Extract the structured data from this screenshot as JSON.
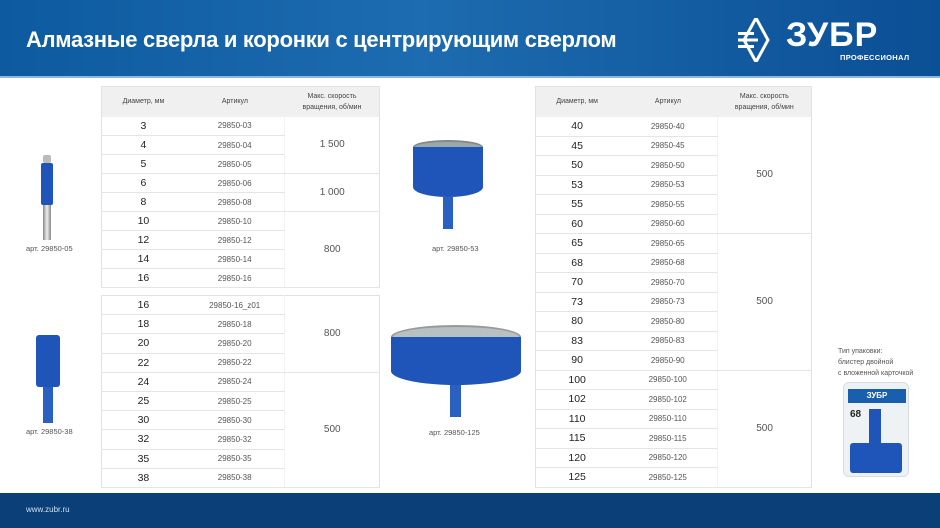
{
  "header": {
    "title": "Алмазные сверла и коронки с центрирующим сверлом",
    "logo": "ЗУБР",
    "logo_sub": "ПРОФЕССИОНАЛ"
  },
  "columns": {
    "diameter": "Диаметр, мм",
    "article": "Артикул",
    "speed_1": "Макс. скорость",
    "speed_2": "вращения, об/мин"
  },
  "table1": [
    {
      "speed": "1 500",
      "rows": [
        [
          "3",
          "29850-03"
        ],
        [
          "4",
          "29850-04"
        ],
        [
          "5",
          "29850-05"
        ]
      ]
    },
    {
      "speed": "1 000",
      "rows": [
        [
          "6",
          "29850-06"
        ],
        [
          "8",
          "29850-08"
        ]
      ]
    },
    {
      "speed": "800",
      "rows": [
        [
          "10",
          "29850-10"
        ],
        [
          "12",
          "29850-12"
        ],
        [
          "14",
          "29850-14"
        ],
        [
          "16",
          "29850-16"
        ]
      ]
    }
  ],
  "table2": [
    {
      "speed": "800",
      "rows": [
        [
          "16",
          "29850-16_z01"
        ],
        [
          "18",
          "29850-18"
        ],
        [
          "20",
          "29850-20"
        ],
        [
          "22",
          "29850-22"
        ]
      ]
    },
    {
      "speed": "500",
      "rows": [
        [
          "24",
          "29850-24"
        ],
        [
          "25",
          "29850-25"
        ],
        [
          "30",
          "29850-30"
        ],
        [
          "32",
          "29850-32"
        ],
        [
          "35",
          "29850-35"
        ],
        [
          "38",
          "29850-38"
        ]
      ]
    }
  ],
  "table3": [
    {
      "speed": "500",
      "rows": [
        [
          "40",
          "29850-40"
        ],
        [
          "45",
          "29850-45"
        ],
        [
          "50",
          "29850-50"
        ],
        [
          "53",
          "29850-53"
        ],
        [
          "55",
          "29850-55"
        ],
        [
          "60",
          "29850-60"
        ]
      ]
    },
    {
      "speed": "500",
      "rows": [
        [
          "65",
          "29850-65"
        ],
        [
          "68",
          "29850-68"
        ],
        [
          "70",
          "29850-70"
        ],
        [
          "73",
          "29850-73"
        ],
        [
          "80",
          "29850-80"
        ],
        [
          "83",
          "29850-83"
        ],
        [
          "90",
          "29850-90"
        ]
      ]
    },
    {
      "speed": "500",
      "rows": [
        [
          "100",
          "29850-100"
        ],
        [
          "102",
          "29850-102"
        ],
        [
          "110",
          "29850-110"
        ],
        [
          "115",
          "29850-115"
        ],
        [
          "120",
          "29850-120"
        ],
        [
          "125",
          "29850-125"
        ]
      ]
    }
  ],
  "captions": {
    "c1": "арт. 29850-05",
    "c2": "арт. 29850-38",
    "c3": "арт. 29850-53",
    "c4": "арт. 29850-125"
  },
  "packaging": {
    "line1": "Тип упаковки:",
    "line2": "блистер двойной",
    "line3": "с вложенной карточкой",
    "label_size": "68"
  },
  "footer": {
    "url": "www.zubr.ru"
  },
  "colors": {
    "brand_blue": "#0d5aa0",
    "tool_blue": "#1f55b8"
  }
}
